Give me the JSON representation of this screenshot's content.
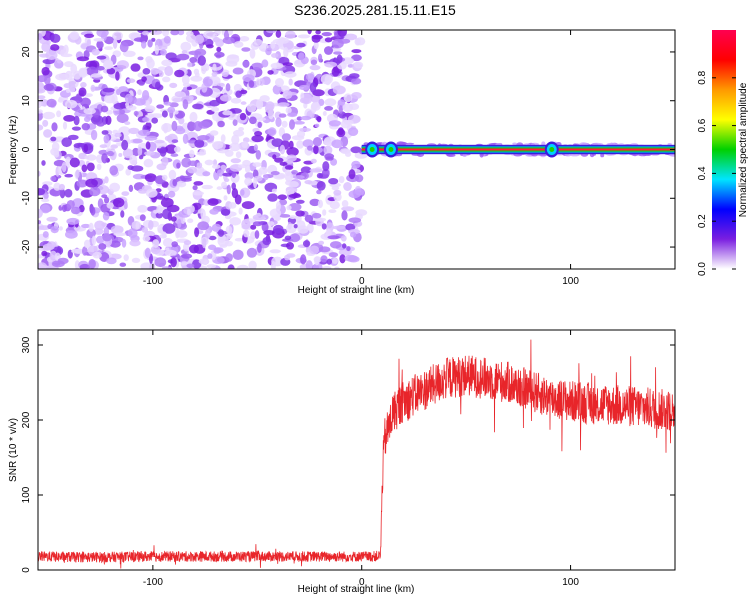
{
  "title": "S236.2025.281.15.11.E15",
  "chart_data": [
    {
      "type": "heatmap",
      "xlabel": "Height of straight line (km)",
      "ylabel": "Frequency (Hz)",
      "xlim": [
        -155,
        150
      ],
      "ylim": [
        -24.5,
        24.5
      ],
      "x_ticks": [
        -100,
        0,
        100
      ],
      "y_ticks": [
        -20,
        -10,
        0,
        10,
        20
      ],
      "noise_region_x": [
        -155,
        0
      ],
      "signal_region_x": [
        0,
        150
      ],
      "signal_band_freq_hz": 0,
      "signal_band_halfwidth_hz": 0.6,
      "signal_hotspots_km": [
        5,
        14,
        91
      ],
      "colorbar": {
        "label": "Normalized spectral amplitude",
        "range": [
          0.0,
          1.0
        ],
        "ticks": [
          0.0,
          0.2,
          0.4,
          0.6,
          0.8
        ],
        "tick_labels": [
          "0.0",
          "0.2",
          "0.4",
          "0.6",
          "0.8"
        ],
        "colors": [
          "#ffffff",
          "#7a1fe0",
          "#0000ff",
          "#00e5ff",
          "#00d000",
          "#ffff00",
          "#ff9900",
          "#ff0000",
          "#ff0050"
        ]
      }
    },
    {
      "type": "line",
      "xlabel": "Height of straight line (km)",
      "ylabel": "SNR (10 * v/v)",
      "xlim": [
        -155,
        150
      ],
      "ylim": [
        0,
        320
      ],
      "x_ticks": [
        -100,
        0,
        100
      ],
      "y_ticks": [
        0,
        100,
        200,
        300
      ],
      "color": "#e8252a",
      "series": [
        {
          "x": [
            -155,
            -130,
            -100,
            -70,
            -40,
            -10,
            5,
            9,
            10,
            11,
            13,
            15,
            20,
            30,
            40,
            50,
            60,
            70,
            80,
            90,
            100,
            110,
            120,
            130,
            140,
            150
          ],
          "y": [
            18,
            17,
            18,
            18,
            18,
            18,
            18,
            19,
            130,
            175,
            190,
            210,
            225,
            240,
            255,
            260,
            255,
            250,
            240,
            230,
            225,
            222,
            220,
            218,
            215,
            212
          ]
        }
      ]
    }
  ]
}
